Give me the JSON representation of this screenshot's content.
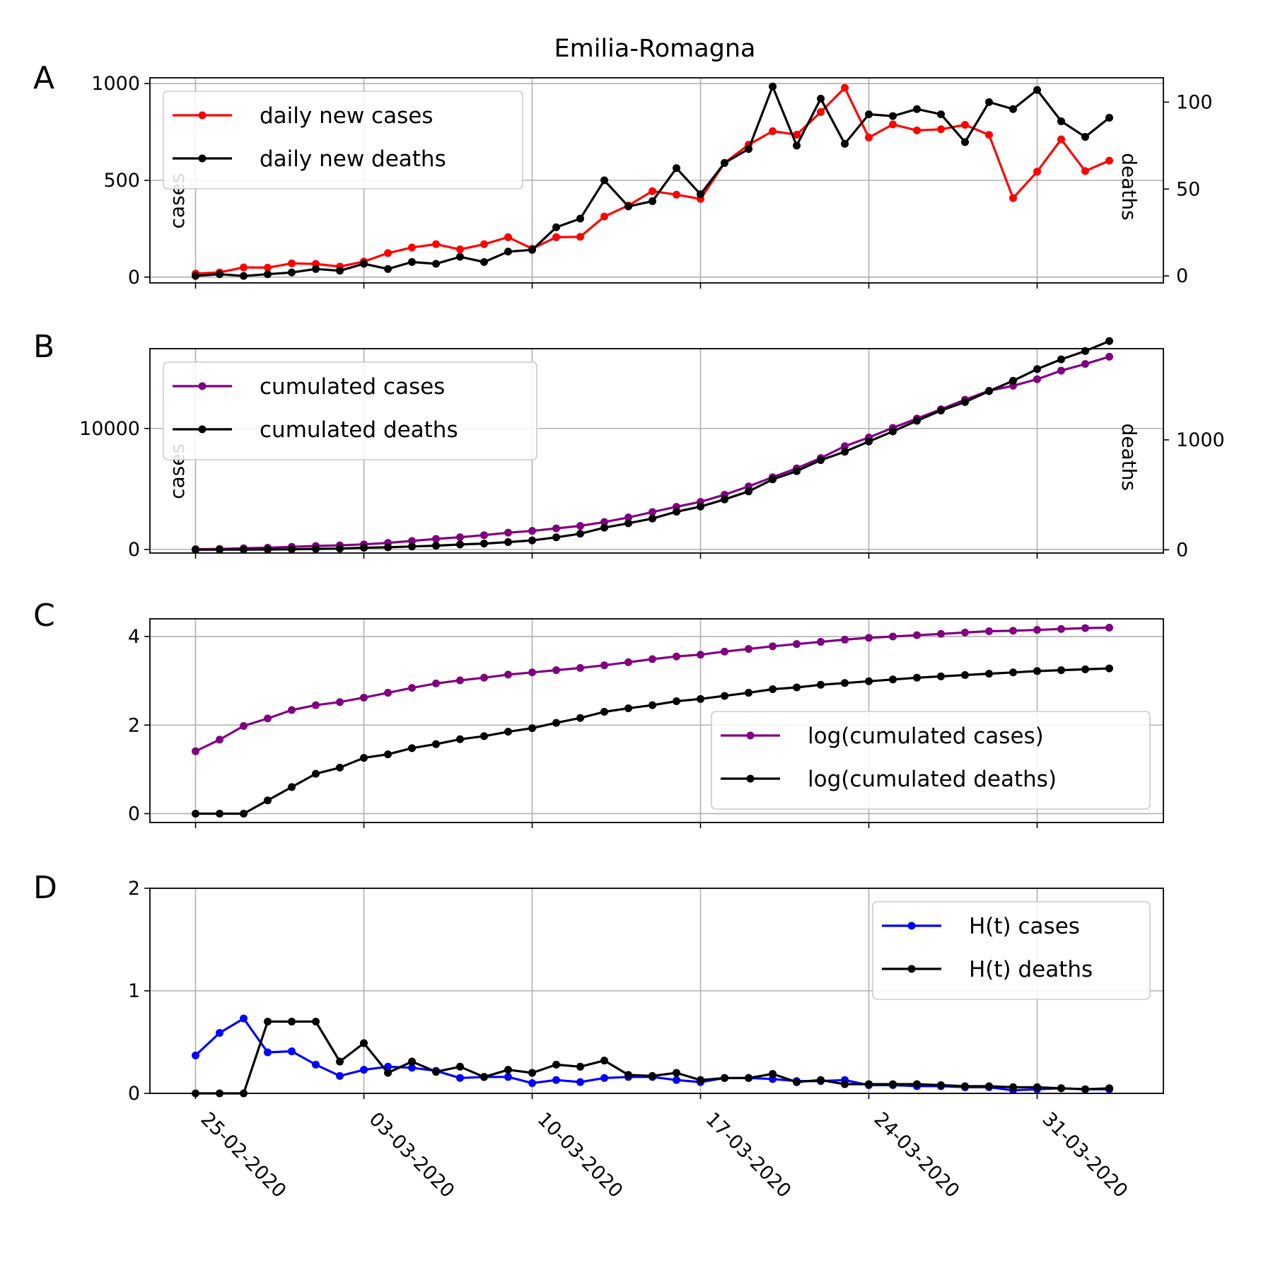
{
  "title": "Emilia-Romagna",
  "x_dates": [
    "25-02-2020",
    "26-02-2020",
    "27-02-2020",
    "28-02-2020",
    "29-02-2020",
    "01-03-2020",
    "02-03-2020",
    "03-03-2020",
    "04-03-2020",
    "05-03-2020",
    "06-03-2020",
    "07-03-2020",
    "08-03-2020",
    "09-03-2020",
    "10-03-2020",
    "11-03-2020",
    "12-03-2020",
    "13-03-2020",
    "14-03-2020",
    "15-03-2020",
    "16-03-2020",
    "17-03-2020",
    "18-03-2020",
    "19-03-2020",
    "20-03-2020",
    "21-03-2020",
    "22-03-2020",
    "23-03-2020",
    "24-03-2020",
    "25-03-2020",
    "26-03-2020",
    "27-03-2020",
    "28-03-2020",
    "29-03-2020",
    "30-03-2020",
    "31-03-2020",
    "01-04-2020",
    "02-04-2020",
    "03-04-2020"
  ],
  "x_tick_labels": [
    "25-02-2020",
    "03-03-2020",
    "10-03-2020",
    "17-03-2020",
    "24-03-2020",
    "31-03-2020"
  ],
  "chart_data": [
    {
      "panel": "A",
      "type": "line",
      "title": "Emilia-Romagna",
      "ylabel": "cases",
      "ylabel_right": "deaths",
      "ylim": [
        -30,
        1030
      ],
      "ylim_right": [
        -4,
        114
      ],
      "yticks": [
        0,
        500,
        1000
      ],
      "yticks_right": [
        0,
        50,
        100
      ],
      "legend": "upper-left",
      "grid": true,
      "series": [
        {
          "name": "daily new cases",
          "color": "#ff0000",
          "axis": "left",
          "values": [
            18,
            24,
            50,
            49,
            71,
            68,
            54,
            80,
            124,
            153,
            170,
            143,
            170,
            206,
            147,
            206,
            208,
            313,
            370,
            444,
            426,
            404,
            590,
            684,
            754,
            736,
            853,
            978,
            721,
            789,
            758,
            764,
            787,
            735,
            408,
            545,
            712,
            548,
            602
          ]
        },
        {
          "name": "daily new deaths",
          "color": "#000000",
          "axis": "right",
          "values": [
            0,
            1,
            0,
            1,
            2,
            4,
            3,
            7,
            4,
            8,
            7,
            11,
            8,
            14,
            15,
            28,
            33,
            55,
            40,
            43,
            62,
            47,
            65,
            73,
            109,
            75,
            102,
            76,
            93,
            92,
            96,
            93,
            77,
            100,
            96,
            107,
            89,
            80,
            91
          ]
        }
      ]
    },
    {
      "panel": "B",
      "type": "line",
      "ylabel": "cases",
      "ylabel_right": "deaths",
      "ylim": [
        -300,
        16600
      ],
      "ylim_right": [
        -30,
        1830
      ],
      "yticks": [
        0,
        10000
      ],
      "yticks_right": [
        0,
        1000
      ],
      "legend": "upper-left",
      "grid": true,
      "series": [
        {
          "name": "cumulated cases",
          "color": "#800080",
          "axis": "left",
          "values": [
            18,
            42,
            97,
            145,
            217,
            285,
            335,
            420,
            544,
            698,
            870,
            1010,
            1180,
            1386,
            1533,
            1739,
            1947,
            2263,
            2644,
            3093,
            3522,
            3931,
            4525,
            5214,
            5968,
            6705,
            7555,
            8535,
            9254,
            10054,
            10816,
            11588,
            12383,
            13119,
            13531,
            14074,
            14783,
            15333,
            15935
          ]
        },
        {
          "name": "cumulated deaths",
          "color": "#000000",
          "axis": "right",
          "values": [
            0,
            1,
            1,
            2,
            4,
            8,
            11,
            18,
            22,
            30,
            37,
            48,
            56,
            70,
            85,
            113,
            146,
            201,
            241,
            284,
            346,
            393,
            458,
            531,
            640,
            715,
            816,
            892,
            985,
            1077,
            1174,
            1267,
            1344,
            1443,
            1538,
            1644,
            1733,
            1808,
            1899
          ]
        }
      ]
    },
    {
      "panel": "C",
      "type": "line",
      "ylim": [
        -0.2,
        4.4
      ],
      "yticks": [
        0,
        2,
        4
      ],
      "legend": "lower-right",
      "grid": true,
      "series": [
        {
          "name": "log(cumulated cases)",
          "color": "#800080",
          "values": [
            1.41,
            1.67,
            1.98,
            2.15,
            2.34,
            2.45,
            2.52,
            2.62,
            2.73,
            2.84,
            2.94,
            3.01,
            3.07,
            3.14,
            3.19,
            3.24,
            3.29,
            3.35,
            3.42,
            3.49,
            3.55,
            3.59,
            3.66,
            3.72,
            3.78,
            3.83,
            3.88,
            3.93,
            3.97,
            4.0,
            4.03,
            4.06,
            4.09,
            4.12,
            4.13,
            4.15,
            4.17,
            4.19,
            4.2
          ]
        },
        {
          "name": "log(cumulated deaths)",
          "color": "#000000",
          "values": [
            0,
            0,
            0,
            0.3,
            0.6,
            0.9,
            1.04,
            1.26,
            1.34,
            1.48,
            1.57,
            1.68,
            1.75,
            1.85,
            1.93,
            2.05,
            2.16,
            2.3,
            2.38,
            2.45,
            2.54,
            2.59,
            2.66,
            2.73,
            2.81,
            2.85,
            2.91,
            2.95,
            2.99,
            3.03,
            3.07,
            3.1,
            3.13,
            3.16,
            3.19,
            3.22,
            3.24,
            3.26,
            3.28
          ]
        }
      ]
    },
    {
      "panel": "D",
      "type": "line",
      "ylim": [
        0,
        2
      ],
      "yticks": [
        0,
        1,
        2
      ],
      "legend": "upper-right",
      "grid": true,
      "series": [
        {
          "name": "H(t) cases",
          "color": "#0000ff",
          "values": [
            0.37,
            0.59,
            0.73,
            0.4,
            0.41,
            0.28,
            0.17,
            0.23,
            0.26,
            0.25,
            0.22,
            0.15,
            0.16,
            0.16,
            0.1,
            0.13,
            0.11,
            0.15,
            0.16,
            0.16,
            0.13,
            0.11,
            0.15,
            0.15,
            0.14,
            0.12,
            0.12,
            0.13,
            0.08,
            0.08,
            0.07,
            0.07,
            0.06,
            0.06,
            0.03,
            0.04,
            0.05,
            0.04,
            0.04
          ]
        },
        {
          "name": "H(t) deaths",
          "color": "#000000",
          "values": [
            0,
            0,
            0,
            0.7,
            0.7,
            0.7,
            0.31,
            0.49,
            0.2,
            0.31,
            0.21,
            0.26,
            0.16,
            0.23,
            0.2,
            0.28,
            0.26,
            0.32,
            0.18,
            0.17,
            0.2,
            0.13,
            0.15,
            0.15,
            0.19,
            0.11,
            0.13,
            0.09,
            0.09,
            0.09,
            0.09,
            0.08,
            0.07,
            0.07,
            0.06,
            0.06,
            0.05,
            0.04,
            0.05
          ]
        }
      ]
    }
  ]
}
